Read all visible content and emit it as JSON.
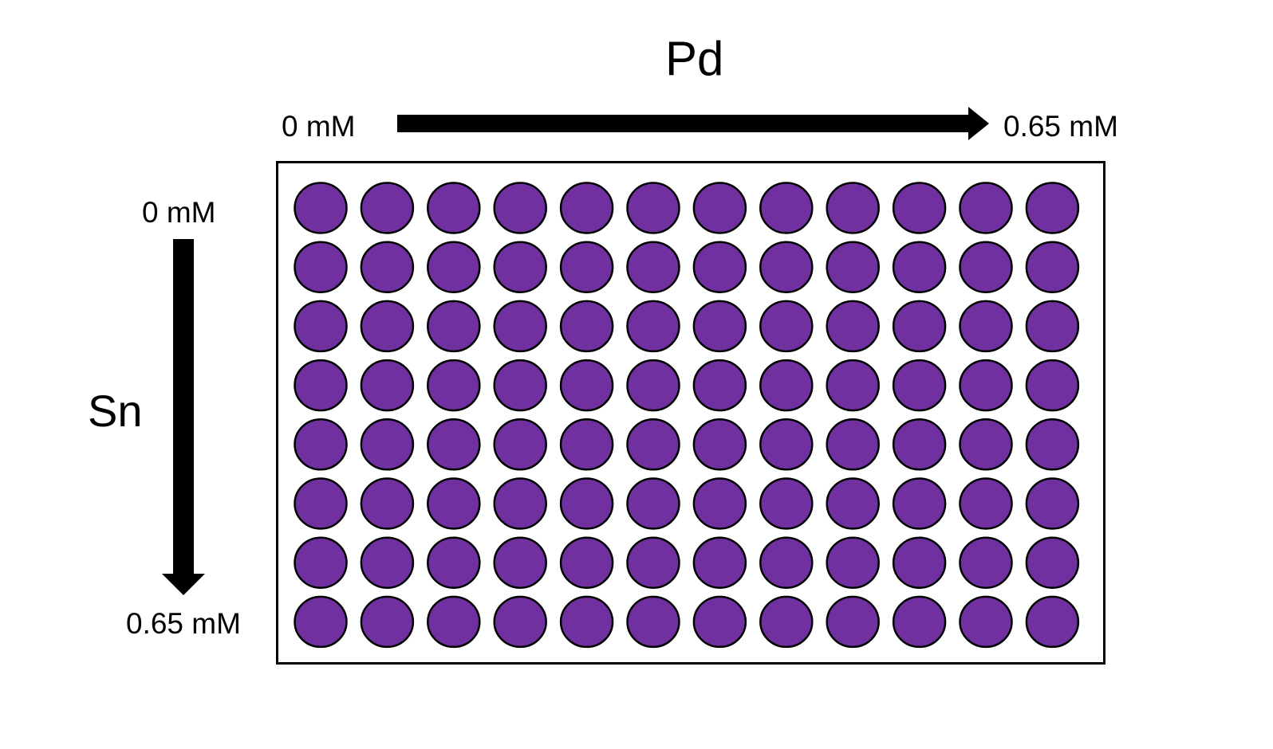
{
  "diagram": {
    "top_axis": {
      "element": "Pd",
      "start_label": "0 mM",
      "end_label": "0.65 mM"
    },
    "left_axis": {
      "element": "Sn",
      "start_label": "0 mM",
      "end_label": "0.65 mM"
    },
    "plate": {
      "rows": 8,
      "columns": 12,
      "well_color": "#7030A0",
      "well_outline_color": "#000000"
    }
  }
}
